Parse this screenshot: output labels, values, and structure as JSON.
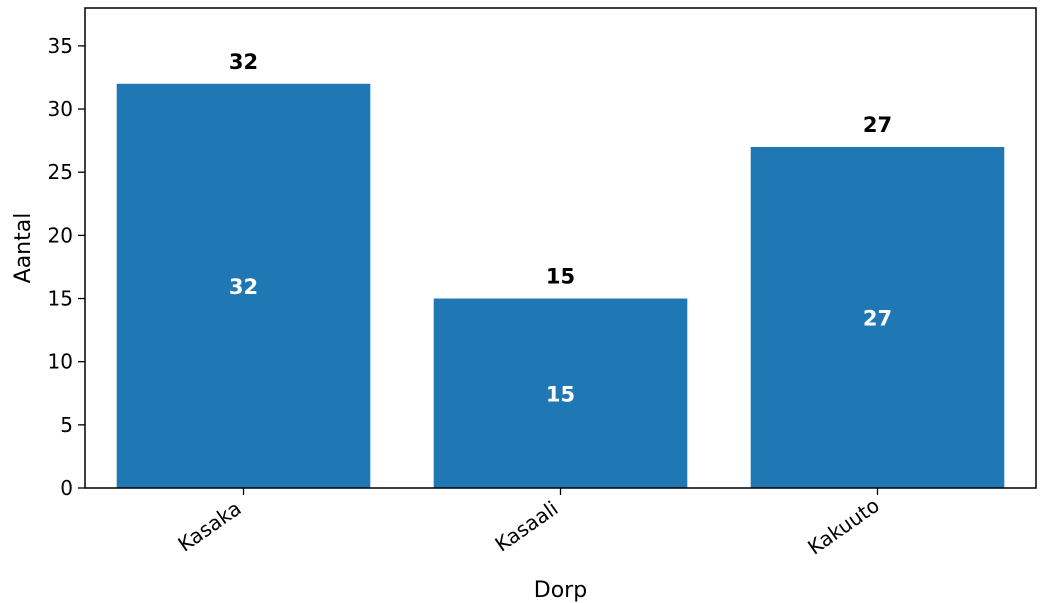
{
  "chart_data": {
    "type": "bar",
    "categories": [
      "Kasaka",
      "Kasaali",
      "Kakuuto"
    ],
    "values": [
      32,
      15,
      27
    ],
    "xlabel": "Dorp",
    "ylabel": "Aantal",
    "ylim": [
      0,
      38
    ],
    "yticks": [
      0,
      5,
      10,
      15,
      20,
      25,
      30,
      35
    ],
    "bar_color": "#1f77b4",
    "grid": false,
    "legend": "none"
  }
}
